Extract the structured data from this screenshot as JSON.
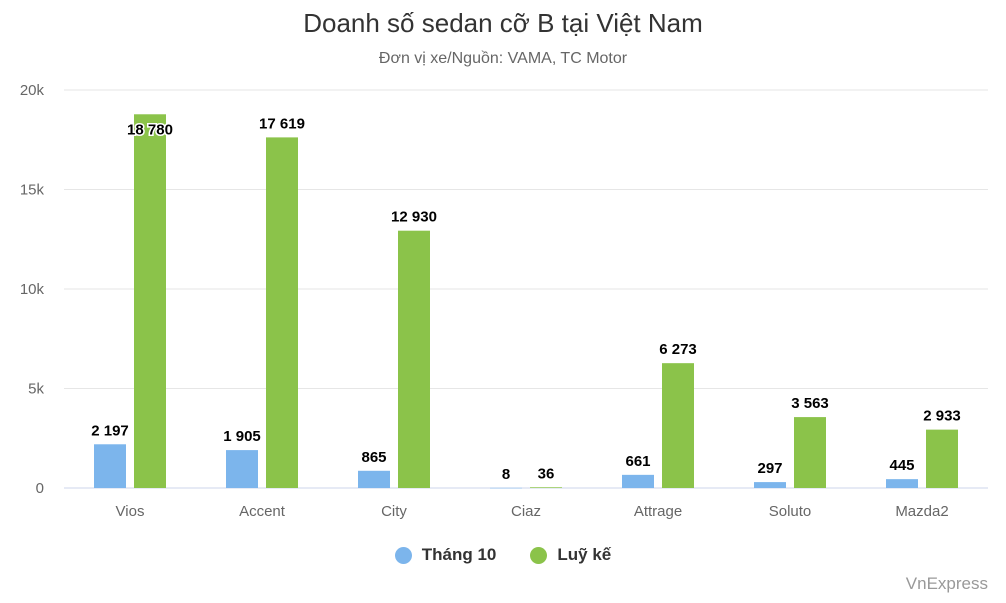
{
  "chart_data": {
    "type": "bar",
    "title": "Doanh số sedan cỡ B tại Việt Nam",
    "subtitle": "Đơn vị xe/Nguồn: VAMA, TC Motor",
    "categories": [
      "Vios",
      "Accent",
      "City",
      "Ciaz",
      "Attrage",
      "Soluto",
      "Mazda2"
    ],
    "series": [
      {
        "name": "Tháng 10",
        "color": "#7cb5ec",
        "values": [
          2197,
          1905,
          865,
          8,
          661,
          297,
          445
        ],
        "labels": [
          "2 197",
          "1 905",
          "865",
          "8",
          "661",
          "297",
          "445"
        ]
      },
      {
        "name": "Luỹ kế",
        "color": "#8bc34a",
        "values": [
          18780,
          17619,
          12930,
          36,
          6273,
          3563,
          2933
        ],
        "labels": [
          "18 780",
          "17 619",
          "12 930",
          "36",
          "6 273",
          "3 563",
          "2 933"
        ]
      }
    ],
    "ylim": [
      0,
      20000
    ],
    "yticks": [
      0,
      5000,
      10000,
      15000,
      20000
    ],
    "ytick_labels": [
      "0",
      "5k",
      "10k",
      "15k",
      "20k"
    ],
    "grid": true,
    "legend_position": "bottom-center"
  },
  "credit": "VnExpress"
}
